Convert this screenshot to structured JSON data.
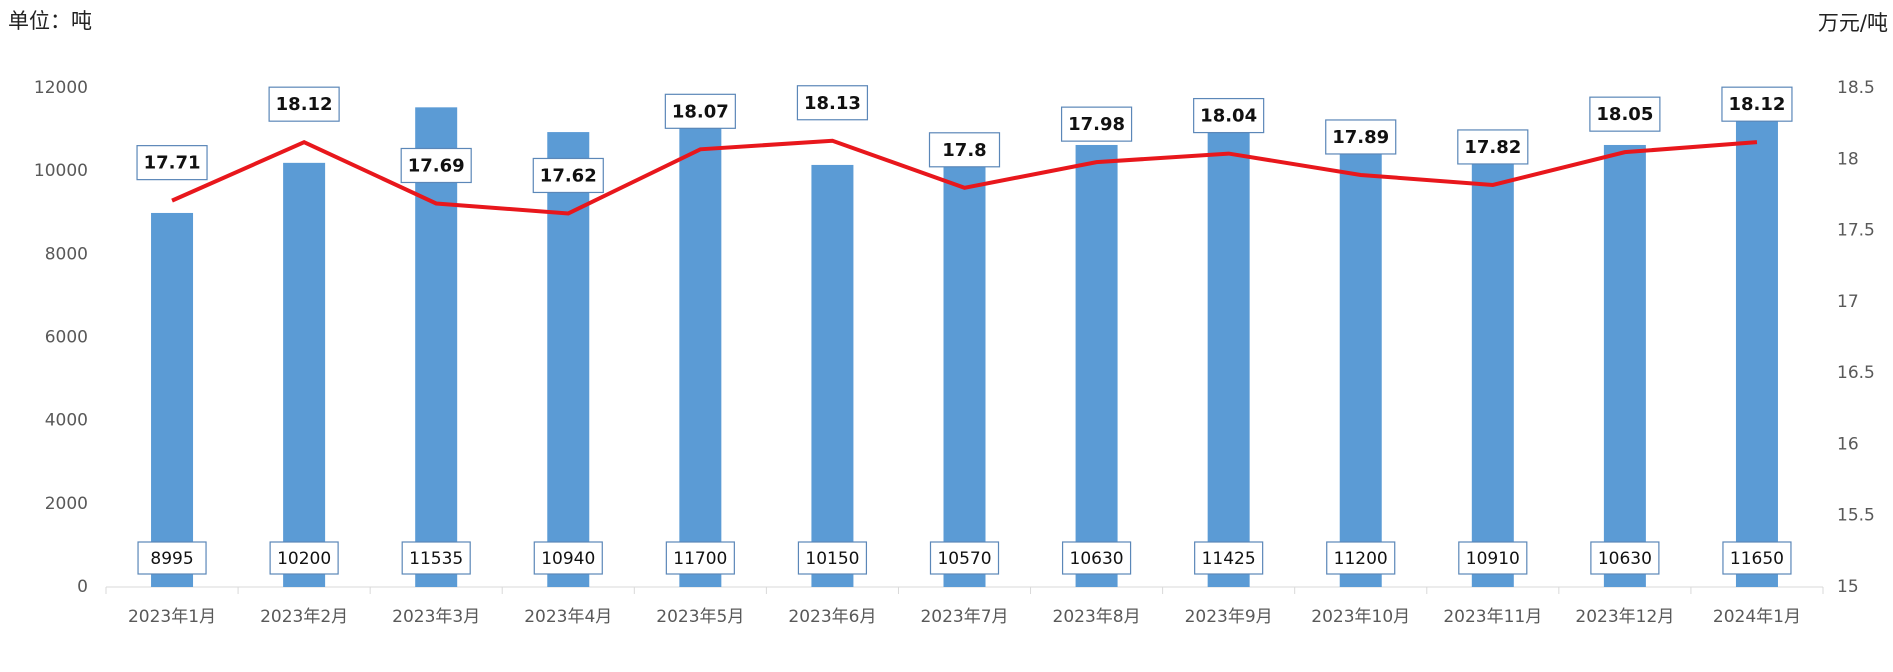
{
  "chart_data": {
    "type": "bar-line",
    "y_unit": "单位：吨",
    "y2_unit": "万元/吨",
    "categories": [
      "2023年1月",
      "2023年2月",
      "2023年3月",
      "2023年4月",
      "2023年5月",
      "2023年6月",
      "2023年7月",
      "2023年8月",
      "2023年9月",
      "2023年10月",
      "2023年11月",
      "2023年12月",
      "2024年1月"
    ],
    "series": [
      {
        "type": "bar",
        "color": "#5b9bd5",
        "values": [
          8995,
          10200,
          11535,
          10940,
          11700,
          10150,
          10570,
          10630,
          11425,
          11200,
          10910,
          10630,
          11650
        ]
      },
      {
        "type": "line",
        "axis": "y2",
        "color": "#e8171c",
        "values": [
          17.71,
          18.12,
          17.69,
          17.62,
          18.07,
          18.13,
          17.8,
          17.98,
          18.04,
          17.89,
          17.82,
          18.05,
          18.12
        ]
      }
    ],
    "ylim": [
      0,
      12000
    ],
    "yticks": [
      0,
      2000,
      4000,
      6000,
      8000,
      10000,
      12000
    ],
    "y2lim": [
      15,
      18.5
    ],
    "y2ticks": [
      15,
      15.5,
      16,
      16.5,
      17,
      17.5,
      18,
      18.5
    ]
  }
}
